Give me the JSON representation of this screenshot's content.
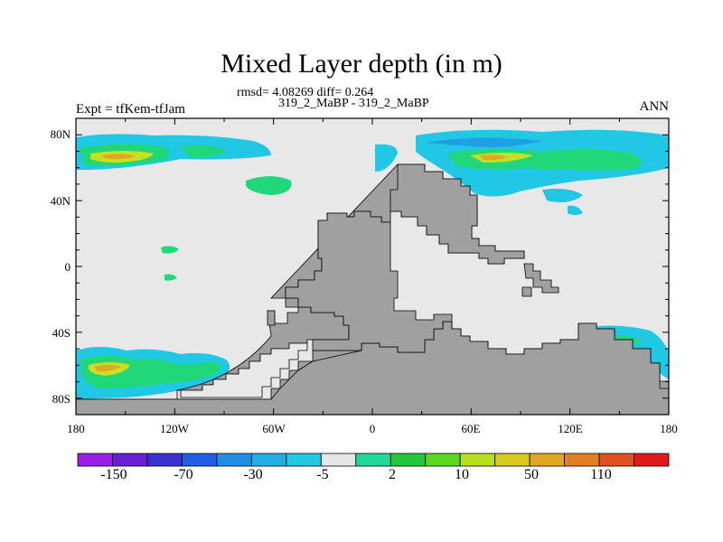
{
  "title": "Mixed Layer depth (in m)",
  "stats_line": "rmsd= 4.08269 diff= 0.264",
  "cases_line": "319_2_MaBP - 319_2_MaBP",
  "left_label": "Expt = tfKem-tfJam",
  "right_label": "ANN",
  "lat_ticks": [
    "80N",
    "40N",
    "0",
    "40S",
    "80S"
  ],
  "lon_ticks": [
    "180",
    "120W",
    "60W",
    "0",
    "60E",
    "120E",
    "180"
  ],
  "colorbar": {
    "labels": [
      "-150",
      "-70",
      "-30",
      "-5",
      "2",
      "10",
      "50",
      "110"
    ],
    "colors": [
      "#9a1fe6",
      "#6a1fd6",
      "#3a2fd0",
      "#1f5fe6",
      "#1f8fe6",
      "#1fb0e6",
      "#20c8e6",
      "#e6e6e6",
      "#20d89a",
      "#20c83a",
      "#5ad820",
      "#b8e020",
      "#d8c820",
      "#e0a820",
      "#e08020",
      "#e05020",
      "#e01a1a"
    ]
  },
  "map_colors": {
    "ocean": "#e8e8e8",
    "land": "#a0a0a0",
    "light_blue": "#20c8e6",
    "blue": "#1fa0e6",
    "green": "#20d87a",
    "yellow": "#c8e020",
    "orange": "#e0a820"
  }
}
